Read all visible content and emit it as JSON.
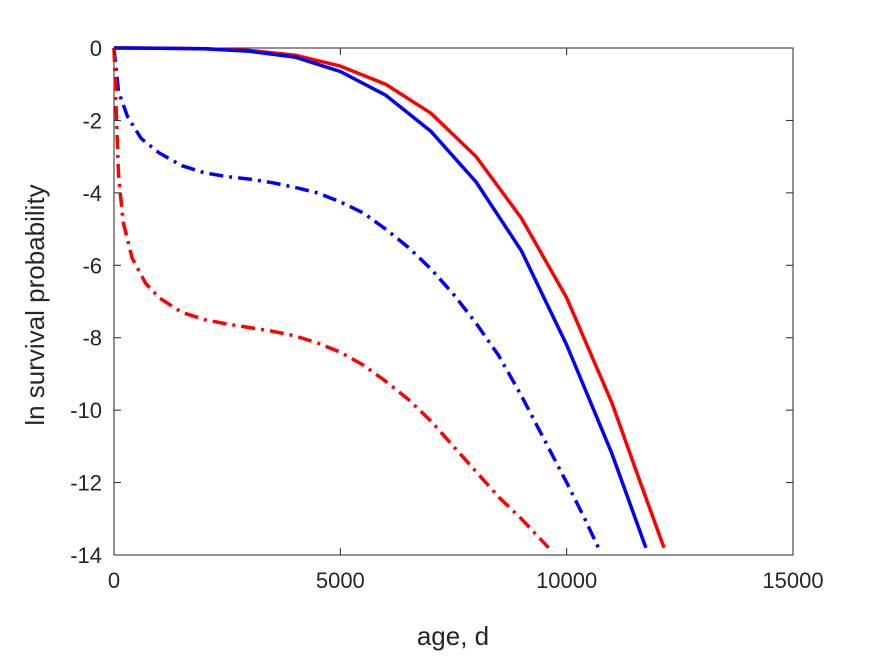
{
  "chart_data": {
    "type": "line",
    "title": "",
    "xlabel": "age, d",
    "ylabel": "ln survival probability",
    "xlim": [
      0,
      15000
    ],
    "ylim": [
      -14,
      0
    ],
    "xticks": [
      0,
      5000,
      10000,
      15000
    ],
    "yticks": [
      0,
      -2,
      -4,
      -6,
      -8,
      -10,
      -12,
      -14
    ],
    "xtick_labels": [
      "0",
      "5000",
      "10000",
      "15000"
    ],
    "ytick_labels": [
      "0",
      "-2",
      "-4",
      "-6",
      "-8",
      "-10",
      "-12",
      "-14"
    ],
    "grid": false,
    "legend": "none",
    "series": [
      {
        "color": "#ff0000",
        "style": "solid",
        "points": [
          [
            0,
            0
          ],
          [
            1000,
            -0.005
          ],
          [
            2000,
            -0.02
          ],
          [
            3000,
            -0.07
          ],
          [
            4000,
            -0.2
          ],
          [
            5000,
            -0.5
          ],
          [
            6000,
            -1.0
          ],
          [
            7000,
            -1.8
          ],
          [
            8000,
            -3.0
          ],
          [
            9000,
            -4.7
          ],
          [
            10000,
            -6.9
          ],
          [
            11000,
            -9.8
          ],
          [
            11600,
            -11.9
          ],
          [
            12150,
            -13.8
          ]
        ]
      },
      {
        "color": "#0000ff",
        "style": "solid",
        "points": [
          [
            0,
            0
          ],
          [
            1000,
            -0.005
          ],
          [
            2000,
            -0.02
          ],
          [
            3000,
            -0.09
          ],
          [
            4000,
            -0.25
          ],
          [
            5000,
            -0.65
          ],
          [
            6000,
            -1.3
          ],
          [
            7000,
            -2.3
          ],
          [
            8000,
            -3.7
          ],
          [
            9000,
            -5.6
          ],
          [
            10000,
            -8.2
          ],
          [
            11000,
            -11.2
          ],
          [
            11750,
            -13.8
          ]
        ]
      },
      {
        "color": "#0000ff",
        "style": "dashdot",
        "points": [
          [
            0,
            0
          ],
          [
            100,
            -1.2
          ],
          [
            300,
            -1.9
          ],
          [
            600,
            -2.5
          ],
          [
            1000,
            -2.9
          ],
          [
            1500,
            -3.25
          ],
          [
            2000,
            -3.45
          ],
          [
            2500,
            -3.55
          ],
          [
            3000,
            -3.62
          ],
          [
            3500,
            -3.72
          ],
          [
            4000,
            -3.85
          ],
          [
            4500,
            -4.0
          ],
          [
            5000,
            -4.25
          ],
          [
            5500,
            -4.55
          ],
          [
            6000,
            -5.0
          ],
          [
            6500,
            -5.5
          ],
          [
            7000,
            -6.1
          ],
          [
            7500,
            -6.8
          ],
          [
            8000,
            -7.6
          ],
          [
            8500,
            -8.5
          ],
          [
            9000,
            -9.6
          ],
          [
            9500,
            -10.8
          ],
          [
            10000,
            -12.0
          ],
          [
            10400,
            -13.0
          ],
          [
            10700,
            -13.8
          ]
        ]
      },
      {
        "color": "#ff0000",
        "style": "dashdot",
        "points": [
          [
            0,
            0
          ],
          [
            100,
            -3.5
          ],
          [
            200,
            -4.8
          ],
          [
            400,
            -5.8
          ],
          [
            700,
            -6.5
          ],
          [
            1000,
            -6.9
          ],
          [
            1500,
            -7.3
          ],
          [
            2000,
            -7.5
          ],
          [
            2500,
            -7.62
          ],
          [
            3000,
            -7.72
          ],
          [
            3500,
            -7.82
          ],
          [
            4000,
            -7.95
          ],
          [
            4500,
            -8.15
          ],
          [
            5000,
            -8.4
          ],
          [
            5500,
            -8.75
          ],
          [
            6000,
            -9.2
          ],
          [
            6500,
            -9.7
          ],
          [
            7000,
            -10.3
          ],
          [
            7500,
            -11.0
          ],
          [
            8000,
            -11.7
          ],
          [
            8500,
            -12.4
          ],
          [
            9000,
            -13.0
          ],
          [
            9300,
            -13.4
          ],
          [
            9600,
            -13.8
          ]
        ]
      }
    ]
  }
}
